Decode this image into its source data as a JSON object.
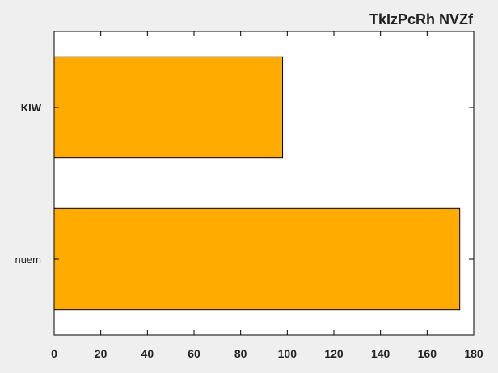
{
  "chart_data": {
    "type": "bar",
    "orientation": "horizontal",
    "title": "TkIzPcRh NVZf",
    "categories": [
      "KIW",
      "nuem"
    ],
    "values": [
      98,
      174
    ],
    "xlim": [
      0,
      180
    ],
    "xticks": [
      0,
      20,
      40,
      60,
      80,
      100,
      120,
      140,
      160,
      180
    ],
    "xlabel": "",
    "ylabel": "",
    "grid": false,
    "colors": {
      "bar": "#ffab00",
      "edge": "#000000",
      "plot_bg": "#ffffff",
      "figure_bg": "#efefef"
    }
  }
}
